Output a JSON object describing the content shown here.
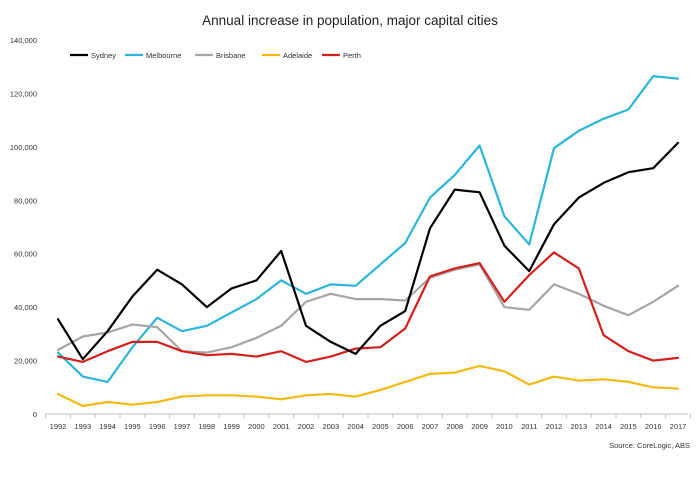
{
  "chart_data": {
    "type": "line",
    "title": "Annual increase in population, major capital cities",
    "xlabel": "",
    "ylabel": "",
    "source": "Source: CoreLogic, ABS",
    "ylim": [
      0,
      140000
    ],
    "yticks": [
      0,
      20000,
      40000,
      60000,
      80000,
      100000,
      120000,
      140000
    ],
    "ytick_labels": [
      "0",
      "20,000",
      "40,000",
      "60,000",
      "80,000",
      "100,000",
      "120,000",
      "140,000"
    ],
    "grid": false,
    "legend_position": "top-left",
    "categories": [
      "1992",
      "1993",
      "1994",
      "1995",
      "1996",
      "1997",
      "1998",
      "1999",
      "2000",
      "2001",
      "2002",
      "2003",
      "2004",
      "2005",
      "2006",
      "2007",
      "2008",
      "2009",
      "2010",
      "2011",
      "2012",
      "2013",
      "2014",
      "2015",
      "2016",
      "2017"
    ],
    "series": [
      {
        "name": "Sydney",
        "color": "#000000",
        "values": [
          35500,
          20500,
          31000,
          44000,
          54000,
          48500,
          40000,
          47000,
          50000,
          61000,
          33000,
          27000,
          22500,
          33000,
          38500,
          69500,
          84000,
          83000,
          63000,
          53500,
          71000,
          81000,
          86500,
          90500,
          92000,
          101500
        ]
      },
      {
        "name": "Melbourne",
        "color": "#2bb5d8",
        "values": [
          23000,
          14000,
          12000,
          25000,
          36000,
          31000,
          33000,
          38000,
          43000,
          50000,
          45000,
          48500,
          48000,
          56000,
          64000,
          81000,
          89500,
          100500,
          74000,
          63500,
          99500,
          106000,
          110500,
          114000,
          126500,
          125500
        ]
      },
      {
        "name": "Brisbane",
        "color": "#a6a6a6",
        "values": [
          24000,
          29000,
          30500,
          33500,
          32500,
          23500,
          23000,
          25000,
          28500,
          33000,
          42000,
          45000,
          43000,
          43000,
          42500,
          51000,
          54000,
          56000,
          40000,
          39000,
          48500,
          45000,
          40500,
          37000,
          42000,
          48000
        ]
      },
      {
        "name": "Adelaide",
        "color": "#f2bb14",
        "values": [
          7500,
          3000,
          4500,
          3500,
          4500,
          6500,
          7000,
          7000,
          6500,
          5500,
          7000,
          7500,
          6500,
          9000,
          12000,
          15000,
          15500,
          18000,
          16000,
          11000,
          14000,
          12500,
          13000,
          12000,
          10000,
          9500
        ]
      },
      {
        "name": "Perth",
        "color": "#d4201c",
        "values": [
          21500,
          19500,
          23500,
          27000,
          27000,
          23500,
          22000,
          22500,
          21500,
          23500,
          19500,
          21500,
          24500,
          25000,
          32000,
          51500,
          54500,
          56500,
          42000,
          52000,
          60500,
          54500,
          29500,
          23500,
          20000,
          21000
        ]
      }
    ]
  }
}
